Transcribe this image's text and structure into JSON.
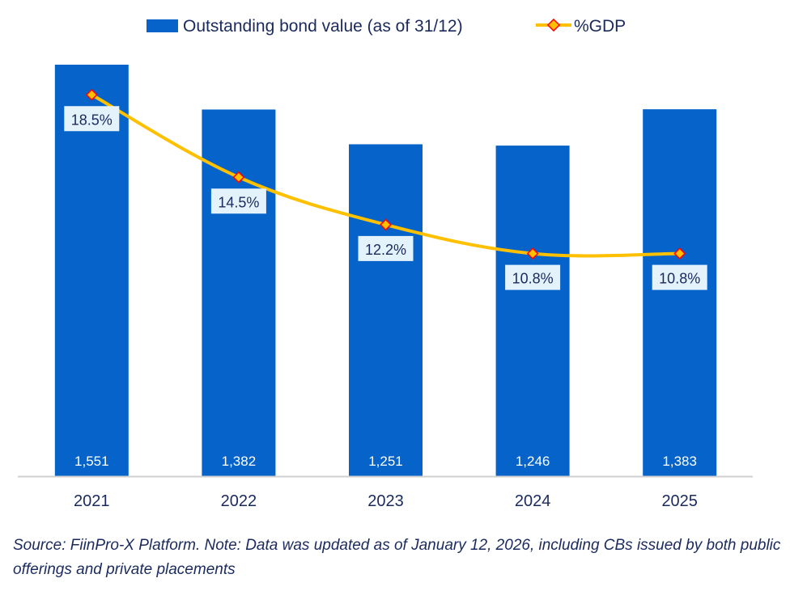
{
  "chart_data": {
    "type": "bar",
    "title": "",
    "xlabel": "",
    "ylabel": "",
    "categories": [
      "2021",
      "2022",
      "2023",
      "2024",
      "2025"
    ],
    "series": [
      {
        "name": "Outstanding bond value (as of 31/12)",
        "type": "bar",
        "color": "#0563C9",
        "values": [
          1551,
          1382,
          1251,
          1246,
          1383
        ],
        "labels": [
          "1,551",
          "1,382",
          "1,251",
          "1,246",
          "1,383"
        ],
        "ylim": [
          0,
          1551
        ]
      },
      {
        "name": "%GDP",
        "type": "line",
        "color": "#FFC000",
        "marker_color": "#FF0000",
        "values": [
          18.5,
          14.5,
          12.2,
          10.8,
          10.8
        ],
        "labels": [
          "18.5%",
          "14.5%",
          "12.2%",
          "10.8%",
          "10.8%"
        ],
        "ylim": [
          0,
          20
        ]
      }
    ],
    "legend": {
      "position": "top",
      "entries": [
        "Outstanding bond value (as of 31/12)",
        "%GDP"
      ]
    },
    "grid": false
  },
  "note": "Source: FiinPro-X Platform. Note: Data was updated as of January 12, 2026, including CBs issued by both public offerings and private placements"
}
